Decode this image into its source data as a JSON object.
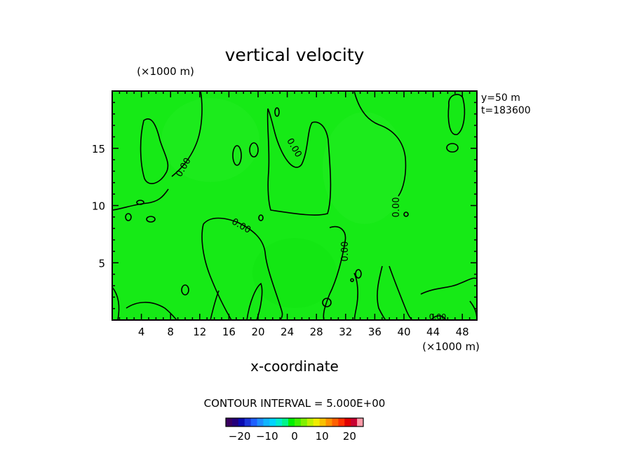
{
  "chart_data": {
    "type": "heatmap",
    "title": "vertical velocity",
    "xlabel": "x-coordinate",
    "ylabel": "",
    "x_unit": "(×1000 m)",
    "y_unit": "(×1000 m)",
    "xlim": [
      0,
      50
    ],
    "ylim": [
      0,
      20
    ],
    "x_ticks": [
      4,
      8,
      12,
      16,
      20,
      24,
      28,
      32,
      36,
      40,
      44,
      48
    ],
    "y_ticks": [
      5,
      10,
      15
    ],
    "info": [
      "y=50 m",
      "t=183600"
    ],
    "contour_interval": "CONTOUR INTERVAL = 5.000E+00",
    "contour_labels": [
      "0.00",
      "0.00",
      "0.00",
      "0.00",
      "0.00",
      "0.00"
    ],
    "colorbar": {
      "ticks": [
        "-20",
        "-10",
        "0",
        "10",
        "20"
      ],
      "range": [
        -25,
        25
      ],
      "colors": [
        "#3a0060",
        "#24007a",
        "#0a0ab0",
        "#1a34d8",
        "#1f60ff",
        "#1e8cff",
        "#10b4ff",
        "#00d4ff",
        "#00eccf",
        "#00f58a",
        "#00f000",
        "#40f000",
        "#80f000",
        "#c0f000",
        "#f0ec00",
        "#f8c000",
        "#ff9000",
        "#ff6000",
        "#ff3000",
        "#e00000",
        "#c80030",
        "#ff9aa8"
      ]
    },
    "field_value_estimate": "≈0 everywhere (uniform green)"
  }
}
